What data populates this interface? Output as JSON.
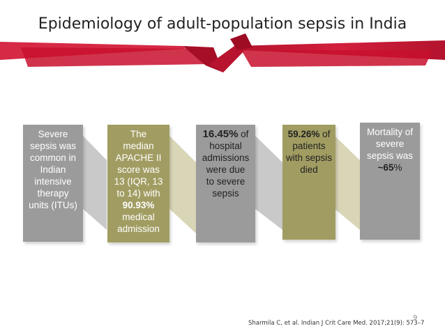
{
  "title": "Epidemiology of adult-population sepsis in India",
  "boxes": [
    {
      "text": "Severe\nsepsis was\ncommon in\nIndian\nintensive\ntherapy\nunits (ITUs)"
    },
    {
      "pre": "The\nmedian\nAPACHE II\nscore was\n13 (IQR, 13\nto 14) with",
      "highlight": "90.93%",
      "post": "medical\nadmission"
    },
    {
      "highlight": "16.45%",
      "after_highlight": " of",
      "post": "hospital\nadmissions\nwere due\nto severe\nsepsis"
    },
    {
      "highlight": "59.26%",
      "after_highlight": " of",
      "post": "patients\nwith sepsis\ndied"
    },
    {
      "pre": "Mortality of\nsevere\nsepsis was",
      "highlight": "~65",
      "after_highlight": "%"
    }
  ],
  "page_number": "9",
  "citation": "Sharmila C, et al. Indian J Crit Care Med. 2017;21(9): 573–7",
  "colors": {
    "ribbon": "#c8102e",
    "grey_box": "#9b9b9b",
    "olive_box": "#a19d62"
  }
}
